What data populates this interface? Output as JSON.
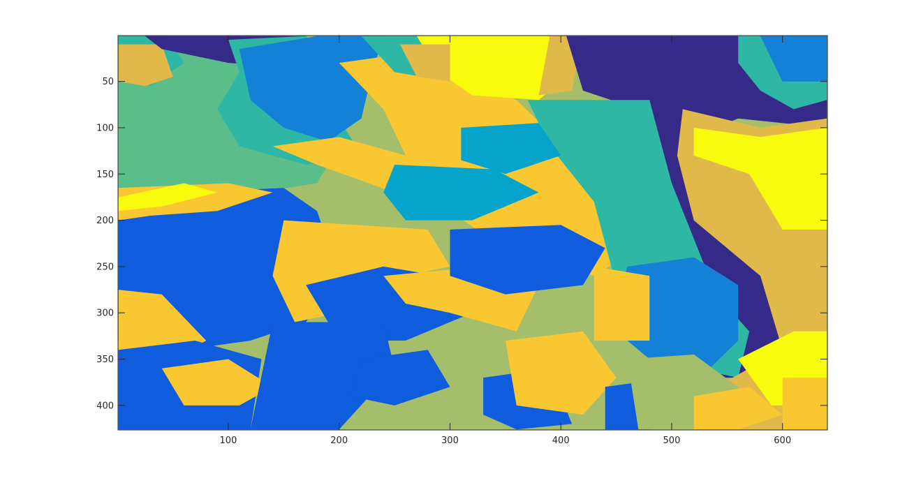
{
  "chart_data": {
    "type": "heatmap",
    "title": "",
    "xlabel": "",
    "ylabel": "",
    "xlim": [
      0.5,
      640.5
    ],
    "ylim": [
      0.5,
      426.5
    ],
    "y_direction": "reversed",
    "x_ticks": [
      100,
      200,
      300,
      400,
      500,
      600
    ],
    "y_ticks": [
      50,
      100,
      150,
      200,
      250,
      300,
      350,
      400
    ],
    "x_tick_labels": [
      "100",
      "200",
      "300",
      "400",
      "500",
      "600"
    ],
    "y_tick_labels": [
      "50",
      "100",
      "150",
      "200",
      "250",
      "300",
      "350",
      "400"
    ],
    "grid": false,
    "colormap": "parula",
    "label_colors": [
      "#352a87",
      "#0f5cdd",
      "#1481d6",
      "#06a4ca",
      "#2eb7a4",
      "#5bbe8a",
      "#a5be6b",
      "#e1b94a",
      "#f8c731",
      "#f9fb0e"
    ],
    "background_label_color": "#a5be6b",
    "regions": [
      {
        "color": "#5bbe8a",
        "points": [
          [
            1,
            1
          ],
          [
            120,
            1
          ],
          [
            160,
            40
          ],
          [
            200,
            120
          ],
          [
            180,
            160
          ],
          [
            100,
            175
          ],
          [
            1,
            180
          ]
        ]
      },
      {
        "color": "#2eb7a4",
        "points": [
          [
            1,
            1
          ],
          [
            45,
            1
          ],
          [
            60,
            30
          ],
          [
            30,
            55
          ],
          [
            1,
            40
          ]
        ]
      },
      {
        "color": "#e1b94a",
        "points": [
          [
            1,
            10
          ],
          [
            40,
            10
          ],
          [
            50,
            45
          ],
          [
            25,
            55
          ],
          [
            1,
            50
          ]
        ]
      },
      {
        "color": "#352a87",
        "points": [
          [
            25,
            1
          ],
          [
            170,
            1
          ],
          [
            160,
            35
          ],
          [
            100,
            30
          ],
          [
            60,
            20
          ],
          [
            40,
            15
          ]
        ]
      },
      {
        "color": "#2eb7a4",
        "points": [
          [
            100,
            5
          ],
          [
            170,
            1
          ],
          [
            190,
            20
          ],
          [
            200,
            90
          ],
          [
            220,
            130
          ],
          [
            170,
            140
          ],
          [
            110,
            120
          ],
          [
            90,
            80
          ],
          [
            110,
            40
          ]
        ]
      },
      {
        "color": "#1481d6",
        "points": [
          [
            110,
            15
          ],
          [
            180,
            1
          ],
          [
            240,
            1
          ],
          [
            230,
            40
          ],
          [
            220,
            90
          ],
          [
            190,
            115
          ],
          [
            150,
            100
          ],
          [
            120,
            70
          ]
        ]
      },
      {
        "color": "#f8c731",
        "points": [
          [
            200,
            30
          ],
          [
            260,
            20
          ],
          [
            360,
            70
          ],
          [
            420,
            140
          ],
          [
            460,
            160
          ],
          [
            470,
            230
          ],
          [
            430,
            260
          ],
          [
            360,
            240
          ],
          [
            300,
            190
          ],
          [
            250,
            170
          ],
          [
            180,
            140
          ],
          [
            140,
            120
          ],
          [
            200,
            110
          ],
          [
            260,
            130
          ],
          [
            240,
            80
          ]
        ]
      },
      {
        "color": "#2eb7a4",
        "points": [
          [
            220,
            1
          ],
          [
            290,
            1
          ],
          [
            300,
            50
          ],
          [
            250,
            40
          ]
        ]
      },
      {
        "color": "#f9fb0e",
        "points": [
          [
            270,
            1
          ],
          [
            400,
            1
          ],
          [
            420,
            30
          ],
          [
            380,
            70
          ],
          [
            320,
            65
          ],
          [
            290,
            40
          ]
        ]
      },
      {
        "color": "#e1b94a",
        "points": [
          [
            255,
            10
          ],
          [
            300,
            10
          ],
          [
            300,
            50
          ],
          [
            270,
            45
          ]
        ]
      },
      {
        "color": "#e1b94a",
        "points": [
          [
            390,
            1
          ],
          [
            420,
            1
          ],
          [
            410,
            60
          ],
          [
            380,
            65
          ]
        ]
      },
      {
        "color": "#352a87",
        "points": [
          [
            405,
            1
          ],
          [
            560,
            1
          ],
          [
            600,
            50
          ],
          [
            640,
            70
          ],
          [
            640,
            100
          ],
          [
            560,
            90
          ],
          [
            520,
            110
          ],
          [
            520,
            200
          ],
          [
            600,
            280
          ],
          [
            620,
            340
          ],
          [
            570,
            370
          ],
          [
            520,
            370
          ],
          [
            540,
            300
          ],
          [
            500,
            240
          ],
          [
            480,
            160
          ],
          [
            470,
            80
          ],
          [
            420,
            60
          ]
        ]
      },
      {
        "color": "#2eb7a4",
        "points": [
          [
            560,
            1
          ],
          [
            640,
            1
          ],
          [
            640,
            70
          ],
          [
            610,
            80
          ],
          [
            580,
            60
          ],
          [
            560,
            30
          ]
        ]
      },
      {
        "color": "#1481d6",
        "points": [
          [
            580,
            1
          ],
          [
            640,
            1
          ],
          [
            640,
            50
          ],
          [
            600,
            50
          ]
        ]
      },
      {
        "color": "#2eb7a4",
        "points": [
          [
            370,
            70
          ],
          [
            480,
            70
          ],
          [
            500,
            160
          ],
          [
            540,
            280
          ],
          [
            570,
            320
          ],
          [
            560,
            370
          ],
          [
            520,
            360
          ],
          [
            470,
            310
          ],
          [
            450,
            270
          ],
          [
            430,
            180
          ],
          [
            390,
            120
          ]
        ]
      },
      {
        "color": "#e1b94a",
        "points": [
          [
            510,
            80
          ],
          [
            580,
            100
          ],
          [
            640,
            90
          ],
          [
            640,
            426
          ],
          [
            560,
            426
          ],
          [
            540,
            380
          ],
          [
            600,
            340
          ],
          [
            580,
            260
          ],
          [
            520,
            200
          ],
          [
            505,
            130
          ]
        ]
      },
      {
        "color": "#f9fb0e",
        "points": [
          [
            520,
            100
          ],
          [
            580,
            110
          ],
          [
            640,
            100
          ],
          [
            640,
            210
          ],
          [
            600,
            210
          ],
          [
            570,
            150
          ],
          [
            520,
            130
          ]
        ]
      },
      {
        "color": "#f9fb0e",
        "points": [
          [
            560,
            350
          ],
          [
            610,
            320
          ],
          [
            640,
            320
          ],
          [
            640,
            400
          ],
          [
            590,
            400
          ]
        ]
      },
      {
        "color": "#f8c731",
        "points": [
          [
            600,
            370
          ],
          [
            640,
            370
          ],
          [
            640,
            426
          ],
          [
            600,
            426
          ]
        ]
      },
      {
        "color": "#1481d6",
        "points": [
          [
            460,
            250
          ],
          [
            520,
            240
          ],
          [
            560,
            270
          ],
          [
            560,
            330
          ],
          [
            530,
            365
          ],
          [
            490,
            360
          ],
          [
            460,
            330
          ],
          [
            450,
            290
          ]
        ]
      },
      {
        "color": "#06a4ca",
        "points": [
          [
            250,
            140
          ],
          [
            340,
            145
          ],
          [
            380,
            170
          ],
          [
            320,
            200
          ],
          [
            260,
            200
          ],
          [
            240,
            170
          ]
        ]
      },
      {
        "color": "#06a4ca",
        "points": [
          [
            310,
            100
          ],
          [
            380,
            95
          ],
          [
            400,
            130
          ],
          [
            350,
            150
          ],
          [
            310,
            135
          ]
        ]
      },
      {
        "color": "#0f5cdd",
        "points": [
          [
            1,
            200
          ],
          [
            60,
            170
          ],
          [
            150,
            165
          ],
          [
            180,
            190
          ],
          [
            200,
            260
          ],
          [
            170,
            310
          ],
          [
            120,
            330
          ],
          [
            60,
            340
          ],
          [
            1,
            330
          ]
        ]
      },
      {
        "color": "#f8c731",
        "points": [
          [
            1,
            275
          ],
          [
            40,
            280
          ],
          [
            80,
            330
          ],
          [
            50,
            350
          ],
          [
            1,
            345
          ]
        ]
      },
      {
        "color": "#f8c731",
        "points": [
          [
            1,
            165
          ],
          [
            100,
            160
          ],
          [
            140,
            170
          ],
          [
            90,
            190
          ],
          [
            30,
            195
          ],
          [
            1,
            200
          ]
        ]
      },
      {
        "color": "#f9fb0e",
        "points": [
          [
            1,
            175
          ],
          [
            60,
            160
          ],
          [
            90,
            170
          ],
          [
            40,
            185
          ],
          [
            1,
            190
          ]
        ]
      },
      {
        "color": "#f8c731",
        "points": [
          [
            150,
            200
          ],
          [
            280,
            210
          ],
          [
            300,
            250
          ],
          [
            260,
            260
          ],
          [
            200,
            300
          ],
          [
            160,
            310
          ],
          [
            140,
            260
          ]
        ]
      },
      {
        "color": "#0f5cdd",
        "points": [
          [
            170,
            270
          ],
          [
            240,
            250
          ],
          [
            290,
            260
          ],
          [
            320,
            300
          ],
          [
            260,
            330
          ],
          [
            200,
            330
          ]
        ]
      },
      {
        "color": "#0f5cdd",
        "points": [
          [
            1,
            340
          ],
          [
            70,
            330
          ],
          [
            130,
            350
          ],
          [
            120,
            426
          ],
          [
            1,
            426
          ]
        ]
      },
      {
        "color": "#f8c731",
        "points": [
          [
            40,
            360
          ],
          [
            100,
            350
          ],
          [
            140,
            380
          ],
          [
            110,
            400
          ],
          [
            60,
            400
          ]
        ]
      },
      {
        "color": "#0f5cdd",
        "points": [
          [
            140,
            310
          ],
          [
            240,
            310
          ],
          [
            250,
            360
          ],
          [
            200,
            426
          ],
          [
            120,
            426
          ]
        ]
      },
      {
        "color": "#f8c731",
        "points": [
          [
            240,
            260
          ],
          [
            330,
            250
          ],
          [
            380,
            270
          ],
          [
            360,
            320
          ],
          [
            300,
            300
          ],
          [
            260,
            290
          ]
        ]
      },
      {
        "color": "#0f5cdd",
        "points": [
          [
            300,
            210
          ],
          [
            400,
            205
          ],
          [
            440,
            230
          ],
          [
            420,
            270
          ],
          [
            350,
            280
          ],
          [
            300,
            260
          ]
        ]
      },
      {
        "color": "#0f5cdd",
        "points": [
          [
            220,
            350
          ],
          [
            280,
            340
          ],
          [
            300,
            380
          ],
          [
            250,
            400
          ],
          [
            210,
            390
          ]
        ]
      },
      {
        "color": "#0f5cdd",
        "points": [
          [
            330,
            370
          ],
          [
            390,
            360
          ],
          [
            410,
            420
          ],
          [
            360,
            426
          ],
          [
            330,
            410
          ]
        ]
      },
      {
        "color": "#f8c731",
        "points": [
          [
            350,
            330
          ],
          [
            420,
            320
          ],
          [
            450,
            370
          ],
          [
            420,
            410
          ],
          [
            360,
            400
          ]
        ]
      },
      {
        "color": "#f8c731",
        "points": [
          [
            430,
            250
          ],
          [
            480,
            260
          ],
          [
            480,
            330
          ],
          [
            430,
            330
          ]
        ]
      },
      {
        "color": "#0f5cdd",
        "points": [
          [
            440,
            380
          ],
          [
            500,
            370
          ],
          [
            510,
            410
          ],
          [
            480,
            426
          ],
          [
            440,
            426
          ]
        ]
      },
      {
        "color": "#a5be6b",
        "points": [
          [
            460,
            350
          ],
          [
            520,
            345
          ],
          [
            560,
            380
          ],
          [
            560,
            426
          ],
          [
            470,
            426
          ]
        ]
      },
      {
        "color": "#f8c731",
        "points": [
          [
            520,
            390
          ],
          [
            570,
            380
          ],
          [
            600,
            410
          ],
          [
            560,
            426
          ],
          [
            520,
            426
          ]
        ]
      }
    ]
  }
}
